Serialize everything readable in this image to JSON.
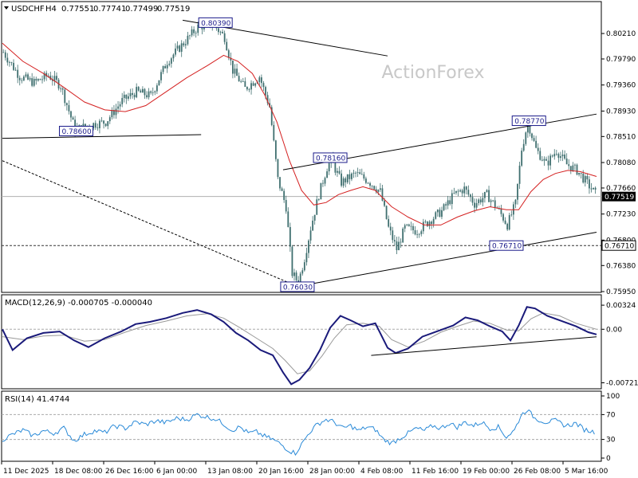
{
  "chart_data": {
    "type": "candlestick",
    "symbol": "USDCHF",
    "timeframe": "H4",
    "ohlc": {
      "open": "0.77551",
      "high": "0.77741",
      "low": "0.77499",
      "close": "0.77519"
    },
    "watermark": "ActionForex",
    "x_tick_labels": [
      "11 Dec 2025",
      "18 Dec 08:00",
      "26 Dec 16:00",
      "6 Jan 00:00",
      "13 Jan 08:00",
      "20 Jan 16:00",
      "28 Jan 00:00",
      "4 Feb 08:00",
      "11 Feb 16:00",
      "19 Feb 00:00",
      "26 Feb 08:00",
      "5 Mar 16:00"
    ],
    "price_panel": {
      "ylim": [
        0.7595,
        0.805
      ],
      "y_ticks": [
        0.8021,
        0.7979,
        0.7936,
        0.7893,
        0.7851,
        0.7808,
        0.7766,
        0.7723,
        0.768,
        0.7638,
        0.7595
      ],
      "y_tick_labels": [
        "0.80210",
        "0.79790",
        "0.79360",
        "0.78930",
        "0.78510",
        "0.78080",
        "0.77660",
        "0.77230",
        "0.76800",
        "0.76380",
        "0.75950"
      ],
      "current_price_label": "0.77519",
      "current_price": 0.77519,
      "horizontal_level_label": "0.76710",
      "horizontal_level": 0.7671,
      "bar_count": 290,
      "price_path": [
        [
          0,
          0.799
        ],
        [
          8,
          0.795
        ],
        [
          15,
          0.794
        ],
        [
          22,
          0.7952
        ],
        [
          28,
          0.7935
        ],
        [
          35,
          0.7862
        ],
        [
          42,
          0.787
        ],
        [
          50,
          0.7875
        ],
        [
          58,
          0.791
        ],
        [
          65,
          0.7925
        ],
        [
          72,
          0.7918
        ],
        [
          80,
          0.7975
        ],
        [
          88,
          0.8005
        ],
        [
          95,
          0.8032
        ],
        [
          102,
          0.8038
        ],
        [
          108,
          0.8015
        ],
        [
          112,
          0.796
        ],
        [
          118,
          0.793
        ],
        [
          125,
          0.795
        ],
        [
          130,
          0.79
        ],
        [
          134,
          0.778
        ],
        [
          138,
          0.7735
        ],
        [
          141,
          0.7625
        ],
        [
          144,
          0.761
        ],
        [
          147,
          0.765
        ],
        [
          150,
          0.77
        ],
        [
          154,
          0.7755
        ],
        [
          158,
          0.78
        ],
        [
          160,
          0.7812
        ],
        [
          165,
          0.7775
        ],
        [
          172,
          0.779
        ],
        [
          178,
          0.7778
        ],
        [
          184,
          0.776
        ],
        [
          188,
          0.77
        ],
        [
          192,
          0.7665
        ],
        [
          196,
          0.77
        ],
        [
          202,
          0.7695
        ],
        [
          208,
          0.7712
        ],
        [
          214,
          0.7728
        ],
        [
          220,
          0.7755
        ],
        [
          225,
          0.7765
        ],
        [
          230,
          0.774
        ],
        [
          236,
          0.7755
        ],
        [
          242,
          0.7728
        ],
        [
          246,
          0.7705
        ],
        [
          250,
          0.774
        ],
        [
          253,
          0.783
        ],
        [
          256,
          0.7875
        ],
        [
          260,
          0.783
        ],
        [
          265,
          0.7805
        ],
        [
          270,
          0.7828
        ],
        [
          275,
          0.7805
        ],
        [
          280,
          0.7795
        ],
        [
          284,
          0.7778
        ],
        [
          290,
          0.7752
        ]
      ],
      "moving_average_path": [
        [
          0,
          0.8005
        ],
        [
          10,
          0.7975
        ],
        [
          20,
          0.7955
        ],
        [
          30,
          0.7932
        ],
        [
          40,
          0.7908
        ],
        [
          50,
          0.7895
        ],
        [
          60,
          0.7892
        ],
        [
          70,
          0.7902
        ],
        [
          80,
          0.7925
        ],
        [
          90,
          0.7948
        ],
        [
          100,
          0.7968
        ],
        [
          108,
          0.7985
        ],
        [
          115,
          0.7975
        ],
        [
          122,
          0.7955
        ],
        [
          128,
          0.792
        ],
        [
          134,
          0.7875
        ],
        [
          140,
          0.7812
        ],
        [
          146,
          0.7762
        ],
        [
          152,
          0.7738
        ],
        [
          158,
          0.7742
        ],
        [
          164,
          0.7755
        ],
        [
          170,
          0.7762
        ],
        [
          176,
          0.7768
        ],
        [
          182,
          0.7762
        ],
        [
          190,
          0.7735
        ],
        [
          198,
          0.7718
        ],
        [
          206,
          0.7705
        ],
        [
          214,
          0.7705
        ],
        [
          222,
          0.7718
        ],
        [
          230,
          0.7728
        ],
        [
          238,
          0.7735
        ],
        [
          246,
          0.773
        ],
        [
          252,
          0.773
        ],
        [
          258,
          0.776
        ],
        [
          264,
          0.778
        ],
        [
          270,
          0.779
        ],
        [
          276,
          0.7795
        ],
        [
          282,
          0.7793
        ],
        [
          290,
          0.7785
        ]
      ],
      "annotations": [
        {
          "label": "0.80390",
          "bar": 104,
          "price": 0.8039
        },
        {
          "label": "0.78600",
          "bar": 36,
          "price": 0.786
        },
        {
          "label": "0.78160",
          "bar": 160,
          "price": 0.7816
        },
        {
          "label": "0.78770",
          "bar": 257,
          "price": 0.7877
        },
        {
          "label": "0.76710",
          "bar": 246,
          "price": 0.7671
        },
        {
          "label": "0.76030",
          "bar": 144,
          "price": 0.7603
        }
      ],
      "trendlines": [
        {
          "style": "solid",
          "from": [
            88,
            0.8043
          ],
          "to": [
            188,
            0.7984
          ]
        },
        {
          "style": "solid",
          "from": [
            0,
            0.7848
          ],
          "to": [
            97,
            0.7854
          ]
        },
        {
          "style": "dashed",
          "from": [
            0,
            0.7811
          ],
          "to": [
            143,
            0.7605
          ]
        },
        {
          "style": "solid",
          "from": [
            137,
            0.7796
          ],
          "to": [
            290,
            0.7888
          ]
        },
        {
          "style": "solid",
          "from": [
            143,
            0.7603
          ],
          "to": [
            290,
            0.7693
          ]
        }
      ]
    },
    "macd_panel": {
      "label": "MACD(12,26,9) -0.000705 -0.000040",
      "ylim": [
        -0.0078,
        0.004
      ],
      "y_ticks": [
        0.00324,
        0.0,
        -0.00721
      ],
      "y_tick_labels": [
        "0.00324",
        "0.00",
        "-0.00721"
      ],
      "macd_path": [
        [
          0,
          0.0
        ],
        [
          5,
          -0.0028
        ],
        [
          12,
          -0.0012
        ],
        [
          20,
          -0.0005
        ],
        [
          28,
          -0.0003
        ],
        [
          35,
          -0.0015
        ],
        [
          42,
          -0.0024
        ],
        [
          50,
          -0.0012
        ],
        [
          58,
          -0.0003
        ],
        [
          65,
          0.0007
        ],
        [
          72,
          0.001
        ],
        [
          80,
          0.0015
        ],
        [
          88,
          0.0022
        ],
        [
          95,
          0.0026
        ],
        [
          102,
          0.002
        ],
        [
          108,
          0.001
        ],
        [
          114,
          -0.0005
        ],
        [
          120,
          -0.0015
        ],
        [
          126,
          -0.0028
        ],
        [
          132,
          -0.0035
        ],
        [
          137,
          -0.0058
        ],
        [
          141,
          -0.0074
        ],
        [
          145,
          -0.0068
        ],
        [
          150,
          -0.0052
        ],
        [
          155,
          -0.0028
        ],
        [
          160,
          0.0002
        ],
        [
          165,
          0.0018
        ],
        [
          170,
          0.0012
        ],
        [
          176,
          0.0004
        ],
        [
          182,
          0.0008
        ],
        [
          188,
          -0.0025
        ],
        [
          192,
          -0.0032
        ],
        [
          198,
          -0.0026
        ],
        [
          205,
          -0.001
        ],
        [
          212,
          -0.0003
        ],
        [
          220,
          0.0005
        ],
        [
          226,
          0.0016
        ],
        [
          232,
          0.0012
        ],
        [
          238,
          0.0004
        ],
        [
          244,
          -0.0003
        ],
        [
          248,
          -0.0015
        ],
        [
          252,
          0.0005
        ],
        [
          256,
          0.003
        ],
        [
          260,
          0.0028
        ],
        [
          266,
          0.0018
        ],
        [
          272,
          0.0012
        ],
        [
          280,
          0.0004
        ],
        [
          286,
          -0.0004
        ],
        [
          290,
          -0.0007
        ]
      ],
      "signal_path": [
        [
          0,
          -0.001
        ],
        [
          10,
          -0.0014
        ],
        [
          20,
          -0.0009
        ],
        [
          30,
          -0.0008
        ],
        [
          40,
          -0.0016
        ],
        [
          50,
          -0.0014
        ],
        [
          60,
          -0.0004
        ],
        [
          70,
          0.0005
        ],
        [
          80,
          0.0011
        ],
        [
          90,
          0.0018
        ],
        [
          100,
          0.0021
        ],
        [
          108,
          0.0015
        ],
        [
          116,
          0.0002
        ],
        [
          124,
          -0.0012
        ],
        [
          132,
          -0.0026
        ],
        [
          138,
          -0.0042
        ],
        [
          144,
          -0.006
        ],
        [
          150,
          -0.0056
        ],
        [
          156,
          -0.0036
        ],
        [
          162,
          -0.0012
        ],
        [
          168,
          0.0006
        ],
        [
          176,
          0.0008
        ],
        [
          184,
          0.0004
        ],
        [
          190,
          -0.0014
        ],
        [
          198,
          -0.0024
        ],
        [
          206,
          -0.0016
        ],
        [
          214,
          -0.0004
        ],
        [
          222,
          0.0004
        ],
        [
          230,
          0.0011
        ],
        [
          238,
          0.0008
        ],
        [
          246,
          -0.0001
        ],
        [
          252,
          -0.0002
        ],
        [
          258,
          0.0014
        ],
        [
          264,
          0.0022
        ],
        [
          272,
          0.0018
        ],
        [
          280,
          0.0008
        ],
        [
          290,
          0.0
        ]
      ],
      "trendline": {
        "from": [
          180,
          -0.00352
        ],
        "to": [
          290,
          -0.00101
        ]
      }
    },
    "rsi_panel": {
      "label": "RSI(14) 41.4744",
      "ylim": [
        0,
        100
      ],
      "y_ticks": [
        100,
        70,
        30,
        0
      ],
      "y_tick_labels": [
        "100",
        "70",
        "30",
        "0"
      ],
      "rsi_path": [
        [
          0,
          30
        ],
        [
          5,
          38
        ],
        [
          10,
          45
        ],
        [
          15,
          36
        ],
        [
          20,
          44
        ],
        [
          25,
          40
        ],
        [
          30,
          48
        ],
        [
          35,
          28
        ],
        [
          40,
          38
        ],
        [
          45,
          44
        ],
        [
          50,
          41
        ],
        [
          55,
          52
        ],
        [
          60,
          48
        ],
        [
          65,
          58
        ],
        [
          70,
          54
        ],
        [
          75,
          60
        ],
        [
          80,
          57
        ],
        [
          85,
          64
        ],
        [
          90,
          62
        ],
        [
          95,
          70
        ],
        [
          100,
          66
        ],
        [
          104,
          63
        ],
        [
          108,
          55
        ],
        [
          112,
          45
        ],
        [
          116,
          50
        ],
        [
          120,
          40
        ],
        [
          124,
          42
        ],
        [
          128,
          35
        ],
        [
          132,
          30
        ],
        [
          136,
          22
        ],
        [
          140,
          12
        ],
        [
          143,
          8
        ],
        [
          146,
          22
        ],
        [
          150,
          42
        ],
        [
          154,
          55
        ],
        [
          158,
          62
        ],
        [
          162,
          58
        ],
        [
          166,
          48
        ],
        [
          170,
          52
        ],
        [
          174,
          44
        ],
        [
          178,
          50
        ],
        [
          182,
          46
        ],
        [
          186,
          30
        ],
        [
          190,
          24
        ],
        [
          194,
          32
        ],
        [
          198,
          40
        ],
        [
          202,
          48
        ],
        [
          206,
          44
        ],
        [
          210,
          52
        ],
        [
          214,
          48
        ],
        [
          218,
          56
        ],
        [
          222,
          50
        ],
        [
          226,
          58
        ],
        [
          230,
          52
        ],
        [
          234,
          58
        ],
        [
          238,
          48
        ],
        [
          242,
          50
        ],
        [
          246,
          34
        ],
        [
          250,
          45
        ],
        [
          253,
          68
        ],
        [
          256,
          78
        ],
        [
          260,
          64
        ],
        [
          265,
          58
        ],
        [
          270,
          60
        ],
        [
          275,
          52
        ],
        [
          280,
          56
        ],
        [
          284,
          46
        ],
        [
          290,
          41
        ]
      ]
    }
  }
}
